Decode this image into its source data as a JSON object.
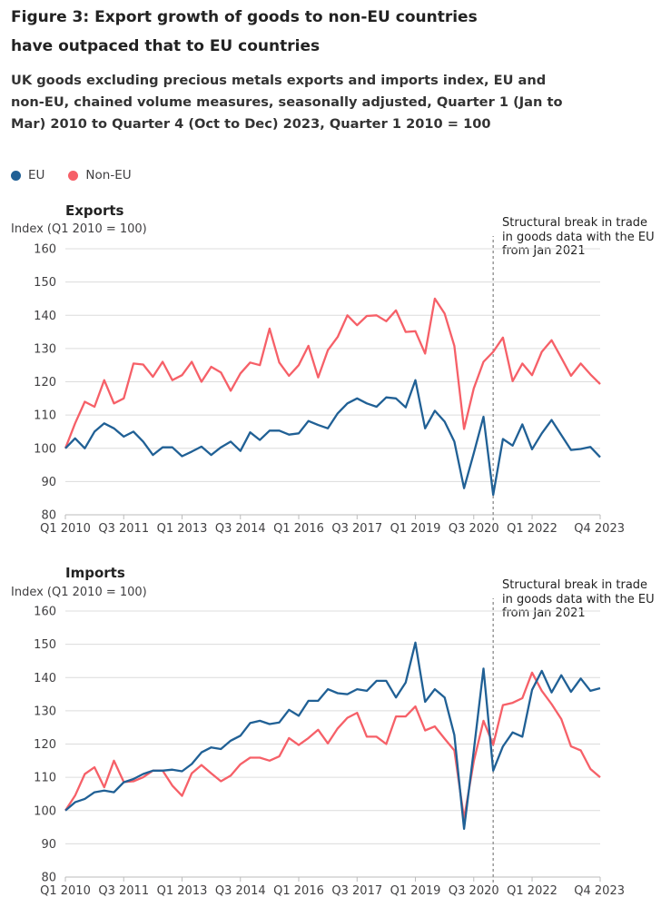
{
  "title": "Figure 3: Export growth of goods to non-EU countries have outpaced that to EU countries",
  "subtitle": "UK goods excluding precious metals exports and imports index, EU and non-EU, chained volume measures, seasonally adjusted, Quarter 1 (Jan to Mar) 2010 to Quarter 4 (Oct to Dec) 2023, Quarter 1 2010 = 100",
  "legend": [
    {
      "label": "EU",
      "color": "#206095"
    },
    {
      "label": "Non-EU",
      "color": "#F66068"
    }
  ],
  "chart_data": [
    {
      "type": "line",
      "title": "Exports",
      "ylabel": "Index (Q1 2010 = 100)",
      "ylim": [
        80,
        160
      ],
      "yticks": [
        "80",
        "90",
        "100",
        "110",
        "120",
        "130",
        "140",
        "150",
        "160"
      ],
      "xtick_indices": [
        0,
        6,
        12,
        18,
        24,
        30,
        36,
        42,
        48,
        55
      ],
      "xtick_labels": [
        "Q1 2010",
        "Q3 2011",
        "Q1 2013",
        "Q3 2014",
        "Q1 2016",
        "Q3 2017",
        "Q1 2019",
        "Q3 2020",
        "Q1 2022",
        "Q4 2023"
      ],
      "grid": true,
      "annotation": {
        "text": "Structural break in trade in goods data with the EU from Jan 2021",
        "at_index": 44
      },
      "series": [
        {
          "name": "EU",
          "color": "#206095",
          "values": [
            100,
            103,
            100,
            105,
            107.5,
            106,
            103.5,
            105,
            102,
            98,
            100.3,
            100.3,
            97.6,
            99,
            100.5,
            98,
            100.3,
            102,
            99.2,
            104.8,
            102.5,
            105.3,
            105.3,
            104.1,
            104.5,
            108.2,
            107,
            106,
            110.5,
            113.5,
            115,
            113.5,
            112.5,
            115.3,
            115,
            112.3,
            120.5,
            106,
            111.3,
            108,
            102,
            88,
            98.5,
            109.5,
            86,
            102.8,
            100.8,
            107.2,
            99.7,
            104.5,
            108.5,
            104,
            99.5,
            99.8,
            100.4,
            97.3
          ]
        },
        {
          "name": "Non-EU",
          "color": "#F66068",
          "values": [
            100,
            107.5,
            114,
            112.5,
            120.5,
            113.5,
            115,
            125.5,
            125.2,
            121.5,
            126,
            120.5,
            122,
            126,
            120,
            124.5,
            122.8,
            117.3,
            122.5,
            125.8,
            125,
            136,
            125.8,
            121.8,
            125,
            130.8,
            121.3,
            129.5,
            133.5,
            140,
            137,
            139.8,
            140,
            138.2,
            141.5,
            135,
            135.2,
            128.5,
            145,
            140.5,
            130.8,
            105.8,
            118,
            126,
            129,
            133.3,
            120.2,
            125.5,
            122,
            129,
            132.5,
            127.2,
            121.8,
            125.5,
            122.2,
            119.3
          ]
        }
      ]
    },
    {
      "type": "line",
      "title": "Imports",
      "ylabel": "Index (Q1 2010 = 100)",
      "ylim": [
        80,
        160
      ],
      "yticks": [
        "80",
        "90",
        "100",
        "110",
        "120",
        "130",
        "140",
        "150",
        "160"
      ],
      "xtick_indices": [
        0,
        6,
        12,
        18,
        24,
        30,
        36,
        42,
        48,
        55
      ],
      "xtick_labels": [
        "Q1 2010",
        "Q3 2011",
        "Q1 2013",
        "Q3 2014",
        "Q1 2016",
        "Q3 2017",
        "Q1 2019",
        "Q3 2020",
        "Q1 2022",
        "Q4 2023"
      ],
      "grid": true,
      "annotation": {
        "text": "Structural break in trade in goods data with the EU from Jan 2021",
        "at_index": 44
      },
      "series": [
        {
          "name": "EU",
          "color": "#206095",
          "values": [
            100,
            102.5,
            103.5,
            105.5,
            106,
            105.5,
            108.5,
            109.5,
            111,
            112,
            112,
            112.3,
            111.8,
            114,
            117.5,
            119,
            118.5,
            121,
            122.5,
            126.3,
            127,
            126,
            126.5,
            130.3,
            128.5,
            133,
            133,
            136.5,
            135.3,
            135,
            136.5,
            136,
            139,
            139,
            134,
            138.5,
            150.5,
            132.7,
            136.5,
            134,
            122.7,
            94.5,
            118,
            142.7,
            112,
            119.3,
            123.5,
            122.2,
            136.3,
            142,
            135.5,
            140.7,
            135.7,
            139.7,
            136,
            136.8
          ]
        },
        {
          "name": "Non-EU",
          "color": "#F66068",
          "values": [
            100,
            104.5,
            111,
            113,
            107,
            115,
            108.6,
            108.8,
            110,
            112,
            112,
            107.5,
            104.4,
            111.2,
            113.7,
            111.2,
            108.8,
            110.5,
            113.9,
            115.9,
            115.9,
            115,
            116.3,
            121.8,
            119.7,
            121.8,
            124.3,
            120.2,
            124.7,
            127.9,
            129.4,
            122.2,
            122.2,
            120,
            128.3,
            128.3,
            131.3,
            124.1,
            125.3,
            121.6,
            118.1,
            97.6,
            114.8,
            127,
            119.8,
            131.7,
            132.4,
            133.8,
            141.5,
            136,
            132,
            127.5,
            119.3,
            118.1,
            112.5,
            110
          ]
        }
      ]
    }
  ]
}
